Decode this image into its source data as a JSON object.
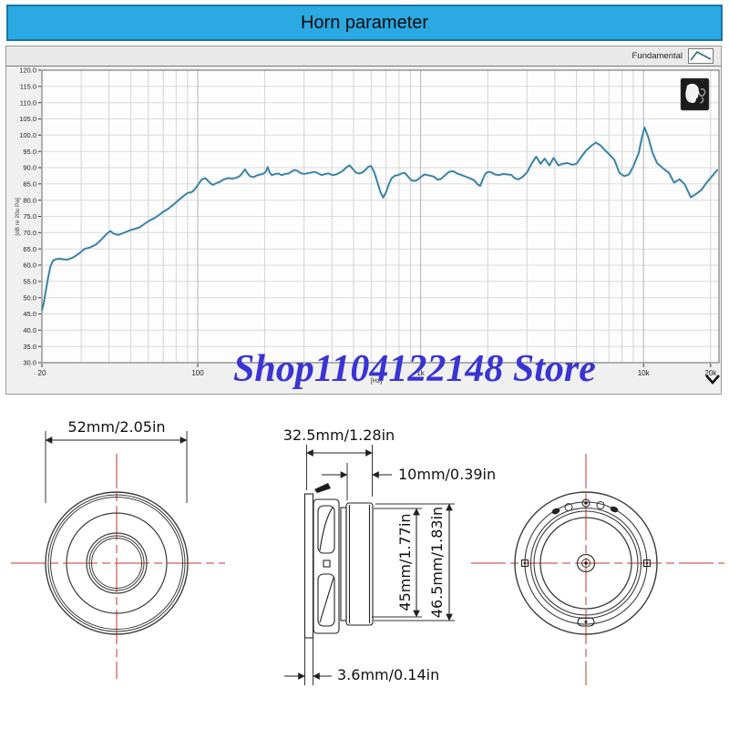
{
  "title_bar": {
    "title": "Horn parameter"
  },
  "toolbar": {
    "series_label": "Fundamental",
    "curve_icon": "peak-curve-icon"
  },
  "watermark": {
    "text": "Shop1104122148 Store",
    "color": "#3a34d2"
  },
  "icons": {
    "head": "head-simulator-icon",
    "chevron": "chevron-down-icon"
  },
  "chart_data": {
    "type": "line",
    "title": "",
    "xlabel": "[Hz]",
    "ylabel": "[dB re 20u Pa]",
    "xscale": "log",
    "xlim": [
      20,
      21800
    ],
    "ylim": [
      30,
      120
    ],
    "y_tick_step": 5,
    "grid": true,
    "legend_position": "toolbar-right",
    "x_ticks": [
      {
        "value": 20,
        "label": "20"
      },
      {
        "value": 100,
        "label": "100"
      },
      {
        "value": 1000,
        "label": "1k"
      },
      {
        "value": 10000,
        "label": "10k"
      },
      {
        "value": 20000,
        "label": "20k"
      }
    ],
    "series": [
      {
        "name": "Fundamental",
        "color": "#35799c",
        "points": [
          [
            20,
            46
          ],
          [
            20.4,
            48.5
          ],
          [
            20.8,
            52
          ],
          [
            21.3,
            56
          ],
          [
            21.8,
            59.5
          ],
          [
            22.4,
            61.3
          ],
          [
            23,
            61.8
          ],
          [
            24,
            62
          ],
          [
            25,
            61.8
          ],
          [
            26,
            61.7
          ],
          [
            27,
            62.1
          ],
          [
            28,
            62.6
          ],
          [
            29.5,
            63.7
          ],
          [
            31,
            65
          ],
          [
            33,
            65.5
          ],
          [
            35,
            66.4
          ],
          [
            37,
            67.9
          ],
          [
            39,
            69.6
          ],
          [
            40.5,
            70.5
          ],
          [
            42,
            69.7
          ],
          [
            44,
            69.3
          ],
          [
            46,
            69.8
          ],
          [
            48,
            70.3
          ],
          [
            50,
            70.8
          ],
          [
            52.5,
            71.2
          ],
          [
            55,
            71.7
          ],
          [
            58,
            72.8
          ],
          [
            61,
            73.8
          ],
          [
            64,
            74.5
          ],
          [
            67,
            75.4
          ],
          [
            70,
            76.4
          ],
          [
            74,
            77.4
          ],
          [
            78,
            78.7
          ],
          [
            82,
            80
          ],
          [
            86,
            81.2
          ],
          [
            90,
            82.2
          ],
          [
            94,
            82.5
          ],
          [
            97,
            83.3
          ],
          [
            101,
            85
          ],
          [
            104,
            86.3
          ],
          [
            108,
            86.8
          ],
          [
            111,
            86
          ],
          [
            114,
            85.2
          ],
          [
            117,
            84.7
          ],
          [
            121,
            85.2
          ],
          [
            126,
            85.7
          ],
          [
            131,
            86.4
          ],
          [
            137,
            86.8
          ],
          [
            143,
            86.6
          ],
          [
            149,
            86.9
          ],
          [
            155,
            87.5
          ],
          [
            159,
            88.4
          ],
          [
            163,
            89.5
          ],
          [
            167,
            88.3
          ],
          [
            172,
            87.3
          ],
          [
            178,
            87.1
          ],
          [
            184,
            87.6
          ],
          [
            191,
            87.9
          ],
          [
            198,
            88.2
          ],
          [
            203,
            89
          ],
          [
            206,
            90.2
          ],
          [
            210,
            88.6
          ],
          [
            215,
            87.7
          ],
          [
            222,
            88
          ],
          [
            230,
            88.2
          ],
          [
            238,
            87.7
          ],
          [
            247,
            88.1
          ],
          [
            256,
            88.2
          ],
          [
            265,
            88.9
          ],
          [
            272,
            89.3
          ],
          [
            280,
            89
          ],
          [
            290,
            88.3
          ],
          [
            300,
            88.1
          ],
          [
            312,
            88.3
          ],
          [
            324,
            88.5
          ],
          [
            335,
            88.7
          ],
          [
            348,
            88.2
          ],
          [
            360,
            87.7
          ],
          [
            374,
            88.1
          ],
          [
            388,
            88.2
          ],
          [
            402,
            87.7
          ],
          [
            418,
            87.9
          ],
          [
            435,
            88.5
          ],
          [
            450,
            89.2
          ],
          [
            465,
            90.1
          ],
          [
            480,
            90.7
          ],
          [
            495,
            89.7
          ],
          [
            512,
            88.5
          ],
          [
            530,
            88.2
          ],
          [
            548,
            88.5
          ],
          [
            565,
            89.3
          ],
          [
            583,
            90.3
          ],
          [
            600,
            90.5
          ],
          [
            620,
            88.5
          ],
          [
            640,
            85.5
          ],
          [
            660,
            82.5
          ],
          [
            680,
            80.8
          ],
          [
            700,
            82.5
          ],
          [
            720,
            84.9
          ],
          [
            740,
            86.7
          ],
          [
            765,
            87.5
          ],
          [
            790,
            87.7
          ],
          [
            820,
            88.2
          ],
          [
            850,
            88.4
          ],
          [
            880,
            87.2
          ],
          [
            910,
            86.1
          ],
          [
            940,
            85.9
          ],
          [
            970,
            86.3
          ],
          [
            1005,
            87.2
          ],
          [
            1040,
            87.9
          ],
          [
            1075,
            87.7
          ],
          [
            1110,
            87.5
          ],
          [
            1150,
            87.2
          ],
          [
            1190,
            86.3
          ],
          [
            1230,
            86.5
          ],
          [
            1280,
            87.5
          ],
          [
            1340,
            88.7
          ],
          [
            1400,
            88.9
          ],
          [
            1460,
            88.2
          ],
          [
            1530,
            87.7
          ],
          [
            1600,
            87.2
          ],
          [
            1670,
            86.7
          ],
          [
            1740,
            86.1
          ],
          [
            1800,
            84.9
          ],
          [
            1850,
            84.4
          ],
          [
            1900,
            86.4
          ],
          [
            1950,
            88.1
          ],
          [
            2010,
            88.7
          ],
          [
            2080,
            88.5
          ],
          [
            2160,
            87.9
          ],
          [
            2250,
            87.7
          ],
          [
            2350,
            88.1
          ],
          [
            2450,
            87.9
          ],
          [
            2550,
            87.8
          ],
          [
            2650,
            86.7
          ],
          [
            2750,
            86.4
          ],
          [
            2870,
            87.2
          ],
          [
            3000,
            88.5
          ],
          [
            3150,
            91.3
          ],
          [
            3300,
            93.4
          ],
          [
            3450,
            91.2
          ],
          [
            3600,
            92.8
          ],
          [
            3780,
            90.7
          ],
          [
            3950,
            93
          ],
          [
            4150,
            90.7
          ],
          [
            4350,
            91.2
          ],
          [
            4550,
            91.4
          ],
          [
            4800,
            90.9
          ],
          [
            5000,
            91.2
          ],
          [
            5250,
            93.3
          ],
          [
            5500,
            95.1
          ],
          [
            5800,
            96.6
          ],
          [
            6100,
            97.7
          ],
          [
            6400,
            96.9
          ],
          [
            6700,
            95.4
          ],
          [
            7000,
            94.2
          ],
          [
            7400,
            92.4
          ],
          [
            7800,
            88.4
          ],
          [
            8200,
            87.4
          ],
          [
            8600,
            87.9
          ],
          [
            9000,
            90.4
          ],
          [
            9500,
            94.4
          ],
          [
            9800,
            98.8
          ],
          [
            10100,
            102.4
          ],
          [
            10500,
            99.4
          ],
          [
            11000,
            94.4
          ],
          [
            11500,
            91.4
          ],
          [
            12200,
            89.9
          ],
          [
            13000,
            88.4
          ],
          [
            13700,
            85.4
          ],
          [
            14500,
            86.4
          ],
          [
            15300,
            84.9
          ],
          [
            16300,
            80.9
          ],
          [
            17200,
            81.9
          ],
          [
            18200,
            83.2
          ],
          [
            19200,
            85.4
          ],
          [
            20300,
            87.4
          ],
          [
            21500,
            89.4
          ]
        ]
      }
    ]
  },
  "drawings": {
    "front_view": {
      "diameter_label": "52mm/2.05in"
    },
    "side_view": {
      "depth_label": "32.5mm/1.28in",
      "magnet_depth_label": "10mm/0.39in",
      "magnet_diameter_label": "45mm/1.77in",
      "total_height_label": "46.5mm/1.83in",
      "flange_thickness_label": "3.6mm/0.14in"
    },
    "rear_view": {}
  }
}
